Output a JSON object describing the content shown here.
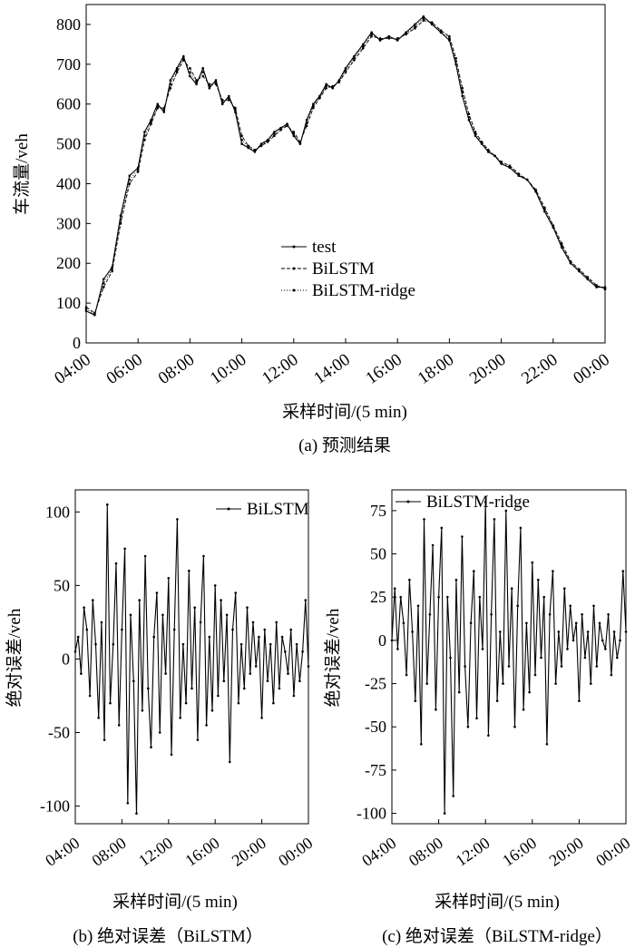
{
  "chart_data": [
    {
      "id": "a",
      "type": "line",
      "caption": "(a) 预测结果",
      "xlabel": "采样时间/(5 min)",
      "ylabel": "车流量/veh",
      "x_tick_labels": [
        "04:00",
        "06:00",
        "08:00",
        "10:00",
        "12:00",
        "14:00",
        "16:00",
        "18:00",
        "20:00",
        "22:00",
        "00:00"
      ],
      "x_range_hours": [
        4,
        24
      ],
      "y_ticks": [
        0,
        100,
        200,
        300,
        400,
        500,
        600,
        700,
        800
      ],
      "ylim": [
        0,
        850
      ],
      "legend_position": "center",
      "legend": [
        "test",
        "BiLSTM",
        "BiLSTM-ridge"
      ],
      "series": [
        {
          "name": "test",
          "x": [
            4.0,
            4.33,
            4.67,
            5.0,
            5.33,
            5.67,
            6.0,
            6.25,
            6.5,
            6.75,
            7.0,
            7.25,
            7.5,
            7.75,
            8.0,
            8.25,
            8.5,
            8.75,
            9.0,
            9.25,
            9.5,
            9.75,
            10.0,
            10.25,
            10.5,
            10.75,
            11.0,
            11.25,
            11.5,
            11.75,
            12.0,
            12.25,
            12.5,
            12.75,
            13.0,
            13.25,
            13.5,
            13.75,
            14.0,
            14.33,
            14.67,
            15.0,
            15.33,
            15.67,
            16.0,
            16.33,
            16.67,
            17.0,
            17.33,
            17.67,
            18.0,
            18.25,
            18.5,
            18.75,
            19.0,
            19.25,
            19.5,
            19.75,
            20.0,
            20.33,
            20.67,
            21.0,
            21.33,
            21.67,
            22.0,
            22.33,
            22.67,
            23.0,
            23.33,
            23.67,
            24.0
          ],
          "y": [
            80,
            70,
            160,
            190,
            320,
            420,
            440,
            530,
            560,
            600,
            580,
            660,
            690,
            720,
            670,
            650,
            690,
            640,
            660,
            600,
            620,
            580,
            500,
            490,
            480,
            500,
            510,
            530,
            540,
            550,
            520,
            500,
            560,
            600,
            620,
            650,
            640,
            660,
            690,
            720,
            750,
            780,
            760,
            770,
            760,
            780,
            800,
            820,
            800,
            780,
            760,
            700,
            620,
            560,
            520,
            500,
            480,
            470,
            450,
            440,
            420,
            410,
            380,
            330,
            290,
            240,
            200,
            180,
            160,
            140,
            140
          ]
        },
        {
          "name": "BiLSTM",
          "x": [
            4.0,
            4.33,
            4.67,
            5.0,
            5.33,
            5.67,
            6.0,
            6.25,
            6.5,
            6.75,
            7.0,
            7.25,
            7.5,
            7.75,
            8.0,
            8.25,
            8.5,
            8.75,
            9.0,
            9.25,
            9.5,
            9.75,
            10.0,
            10.25,
            10.5,
            10.75,
            11.0,
            11.25,
            11.5,
            11.75,
            12.0,
            12.25,
            12.5,
            12.75,
            13.0,
            13.25,
            13.5,
            13.75,
            14.0,
            14.33,
            14.67,
            15.0,
            15.33,
            15.67,
            16.0,
            16.33,
            16.67,
            17.0,
            17.33,
            17.67,
            18.0,
            18.25,
            18.5,
            18.75,
            19.0,
            19.25,
            19.5,
            19.75,
            20.0,
            20.33,
            20.67,
            21.0,
            21.33,
            21.67,
            22.0,
            22.33,
            22.67,
            23.0,
            23.33,
            23.67,
            24.0
          ],
          "y": [
            90,
            75,
            140,
            180,
            300,
            400,
            430,
            510,
            550,
            590,
            590,
            640,
            680,
            710,
            690,
            660,
            670,
            650,
            650,
            610,
            610,
            590,
            520,
            495,
            485,
            495,
            505,
            520,
            535,
            545,
            530,
            505,
            545,
            590,
            615,
            640,
            645,
            655,
            680,
            710,
            740,
            770,
            765,
            765,
            765,
            775,
            790,
            810,
            805,
            785,
            770,
            715,
            640,
            575,
            530,
            505,
            485,
            470,
            455,
            445,
            425,
            410,
            385,
            340,
            295,
            250,
            205,
            185,
            165,
            145,
            135
          ]
        },
        {
          "name": "BiLSTM-ridge",
          "x": [
            4.0,
            4.33,
            4.67,
            5.0,
            5.33,
            5.67,
            6.0,
            6.25,
            6.5,
            6.75,
            7.0,
            7.25,
            7.5,
            7.75,
            8.0,
            8.25,
            8.5,
            8.75,
            9.0,
            9.25,
            9.5,
            9.75,
            10.0,
            10.25,
            10.5,
            10.75,
            11.0,
            11.25,
            11.5,
            11.75,
            12.0,
            12.25,
            12.5,
            12.75,
            13.0,
            13.25,
            13.5,
            13.75,
            14.0,
            14.33,
            14.67,
            15.0,
            15.33,
            15.67,
            16.0,
            16.33,
            16.67,
            17.0,
            17.33,
            17.67,
            18.0,
            18.25,
            18.5,
            18.75,
            19.0,
            19.25,
            19.5,
            19.75,
            20.0,
            20.33,
            20.67,
            21.0,
            21.33,
            21.67,
            22.0,
            22.33,
            22.67,
            23.0,
            23.33,
            23.67,
            24.0
          ],
          "y": [
            85,
            72,
            150,
            185,
            310,
            410,
            435,
            520,
            555,
            595,
            585,
            650,
            685,
            715,
            680,
            655,
            680,
            645,
            655,
            605,
            615,
            585,
            510,
            492,
            482,
            497,
            507,
            525,
            537,
            547,
            525,
            502,
            552,
            595,
            617,
            645,
            642,
            657,
            685,
            715,
            745,
            775,
            762,
            767,
            762,
            777,
            795,
            815,
            802,
            782,
            765,
            707,
            630,
            567,
            525,
            502,
            482,
            470,
            452,
            442,
            422,
            410,
            382,
            335,
            292,
            245,
            202,
            182,
            162,
            142,
            137
          ]
        }
      ]
    },
    {
      "id": "b",
      "type": "line",
      "caption": "(b) 绝对误差（BiLSTM）",
      "xlabel": "采样时间/(5 min)",
      "ylabel": "绝对误差/veh",
      "x_tick_labels": [
        "04:00",
        "08:00",
        "12:00",
        "16:00",
        "20:00",
        "00:00"
      ],
      "x_range_hours": [
        4,
        24
      ],
      "y_ticks": [
        -100,
        -50,
        0,
        50,
        100
      ],
      "ylim": [
        -112,
        115
      ],
      "legend_position": "top-right",
      "legend": [
        "BiLSTM"
      ],
      "series": [
        {
          "name": "BiLSTM",
          "x": [
            4.0,
            4.25,
            4.5,
            4.75,
            5.0,
            5.25,
            5.5,
            5.75,
            6.0,
            6.25,
            6.5,
            6.75,
            7.0,
            7.25,
            7.5,
            7.75,
            8.0,
            8.25,
            8.5,
            8.75,
            9.0,
            9.25,
            9.5,
            9.75,
            10.0,
            10.25,
            10.5,
            10.75,
            11.0,
            11.25,
            11.5,
            11.75,
            12.0,
            12.25,
            12.5,
            12.75,
            13.0,
            13.25,
            13.5,
            13.75,
            14.0,
            14.25,
            14.5,
            14.75,
            15.0,
            15.25,
            15.5,
            15.75,
            16.0,
            16.25,
            16.5,
            16.75,
            17.0,
            17.25,
            17.5,
            17.75,
            18.0,
            18.25,
            18.5,
            18.75,
            19.0,
            19.25,
            19.5,
            19.75,
            20.0,
            20.25,
            20.5,
            20.75,
            21.0,
            21.25,
            21.5,
            21.75,
            22.0,
            22.25,
            22.5,
            22.75,
            23.0,
            23.25,
            23.5,
            23.75,
            24.0
          ],
          "y": [
            5,
            15,
            -10,
            35,
            20,
            -25,
            40,
            10,
            -40,
            25,
            -55,
            105,
            -30,
            10,
            65,
            -45,
            20,
            75,
            -98,
            30,
            -15,
            -105,
            40,
            -35,
            70,
            -20,
            -60,
            15,
            45,
            -50,
            30,
            -10,
            55,
            -65,
            20,
            95,
            -40,
            10,
            -30,
            60,
            -20,
            35,
            -55,
            25,
            70,
            -45,
            15,
            -35,
            50,
            -25,
            40,
            -15,
            30,
            -70,
            20,
            45,
            -30,
            10,
            -20,
            35,
            -10,
            25,
            -5,
            15,
            -40,
            20,
            -15,
            10,
            -30,
            25,
            -20,
            15,
            5,
            -10,
            20,
            -25,
            10,
            -15,
            5,
            40,
            -5
          ]
        }
      ]
    },
    {
      "id": "c",
      "type": "line",
      "caption": "(c) 绝对误差（BiLSTM-ridge）",
      "xlabel": "采样时间/(5 min)",
      "ylabel": "绝对误差/veh",
      "x_tick_labels": [
        "04:00",
        "08:00",
        "12:00",
        "16:00",
        "20:00",
        "00:00"
      ],
      "x_range_hours": [
        4,
        24
      ],
      "y_ticks": [
        -100,
        -75,
        -50,
        -25,
        0,
        25,
        50,
        75
      ],
      "ylim": [
        -106,
        87
      ],
      "legend_position": "top",
      "legend": [
        "BiLSTM-ridge"
      ],
      "series": [
        {
          "name": "BiLSTM-ridge",
          "x": [
            4.0,
            4.25,
            4.5,
            4.75,
            5.0,
            5.25,
            5.5,
            5.75,
            6.0,
            6.25,
            6.5,
            6.75,
            7.0,
            7.25,
            7.5,
            7.75,
            8.0,
            8.25,
            8.5,
            8.75,
            9.0,
            9.25,
            9.5,
            9.75,
            10.0,
            10.25,
            10.5,
            10.75,
            11.0,
            11.25,
            11.5,
            11.75,
            12.0,
            12.25,
            12.5,
            12.75,
            13.0,
            13.25,
            13.5,
            13.75,
            14.0,
            14.25,
            14.5,
            14.75,
            15.0,
            15.25,
            15.5,
            15.75,
            16.0,
            16.25,
            16.5,
            16.75,
            17.0,
            17.25,
            17.5,
            17.75,
            18.0,
            18.25,
            18.5,
            18.75,
            19.0,
            19.25,
            19.5,
            19.75,
            20.0,
            20.25,
            20.5,
            20.75,
            21.0,
            21.25,
            21.5,
            21.75,
            22.0,
            22.25,
            22.5,
            22.75,
            23.0,
            23.25,
            23.5,
            23.75,
            24.0
          ],
          "y": [
            0,
            30,
            -5,
            25,
            10,
            -20,
            35,
            5,
            -35,
            20,
            -60,
            70,
            -25,
            15,
            55,
            -40,
            25,
            65,
            -100,
            25,
            -10,
            -90,
            35,
            -30,
            60,
            -15,
            -50,
            10,
            40,
            -45,
            25,
            -5,
            80,
            -55,
            15,
            70,
            -35,
            5,
            -25,
            75,
            -15,
            30,
            -50,
            20,
            65,
            -40,
            10,
            -30,
            45,
            -20,
            35,
            -10,
            25,
            -60,
            15,
            40,
            -25,
            5,
            -15,
            30,
            -5,
            20,
            0,
            10,
            -35,
            15,
            -10,
            5,
            -25,
            20,
            -15,
            10,
            0,
            -5,
            15,
            -20,
            5,
            -10,
            0,
            40,
            5
          ]
        }
      ]
    }
  ]
}
